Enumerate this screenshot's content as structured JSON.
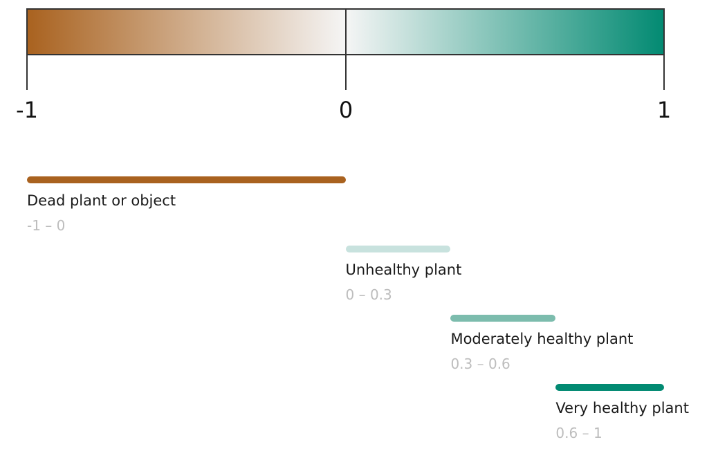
{
  "colors": {
    "negative_end": "#a9621f",
    "center": "#f5f5f5",
    "positive_end": "#028a72",
    "outline": "#333333"
  },
  "scale": {
    "min": -1,
    "max": 1,
    "ticks": [
      {
        "value": -1,
        "label": "-1"
      },
      {
        "value": 0,
        "label": "0"
      },
      {
        "value": 1,
        "label": "1"
      }
    ]
  },
  "categories": [
    {
      "name": "Dead plant or object",
      "range": "-1 – 0",
      "from": -1,
      "to": 0,
      "color": "#a9621f"
    },
    {
      "name": "Unhealthy plant",
      "range": "0 – 0.3",
      "from": 0,
      "to": 0.33,
      "color": "#c8e2de"
    },
    {
      "name": "Moderately healthy plant",
      "range": "0.3 – 0.6",
      "from": 0.33,
      "to": 0.66,
      "color": "#7cbcad"
    },
    {
      "name": "Very healthy plant",
      "range": "0.6 – 1",
      "from": 0.66,
      "to": 1,
      "color": "#028a72"
    }
  ]
}
